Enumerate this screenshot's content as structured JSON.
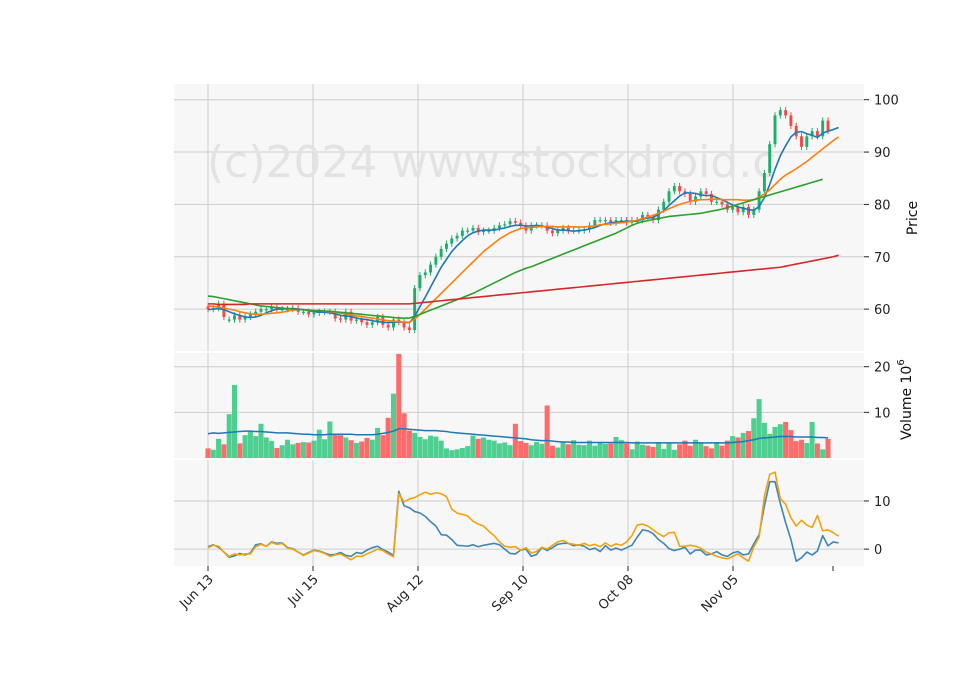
{
  "chart_data": {
    "type": "candlestick",
    "watermark": "(c)2024 www.stockdroid.c",
    "x_tick_labels": [
      "Jun 13",
      "Jul 15",
      "Aug 12",
      "Sep 10",
      "Oct 08",
      "Nov 05"
    ],
    "colors": {
      "up": "#1aaf6c",
      "down": "#f04a4a",
      "vol_up": "#4ccf8f",
      "vol_down": "#ff6b6b",
      "ma5": "#1f77b4",
      "ma10": "#ff7f0e",
      "ma20": "#2ca02c",
      "ma60": "#d62728",
      "vol_ma": "#1f77b4",
      "ind1": "#3f86b6",
      "ind2": "#f2a20f",
      "panel_bg": "#f7f7f7",
      "grid": "#cccccc"
    },
    "panels": [
      {
        "id": "price",
        "ylabel": "Price",
        "yticks": [
          60,
          70,
          80,
          90,
          100
        ],
        "ylim": [
          52,
          103
        ]
      },
      {
        "id": "volume",
        "ylabel": "Volume  10",
        "ylabel_exp": "6",
        "yticks": [
          10,
          20
        ],
        "ylim": [
          0,
          23
        ]
      },
      {
        "id": "indicator",
        "ylabel": "",
        "yticks": [
          0,
          10
        ],
        "ylim": [
          -3.5,
          18.5
        ]
      }
    ],
    "n_bars": 118,
    "candles": {
      "open": [
        60.5,
        60.0,
        60.2,
        61.0,
        58.0,
        58.0,
        58.8,
        58.0,
        58.5,
        59.0,
        59.5,
        60.0,
        60.0,
        60.3,
        60.0,
        60.0,
        60.0,
        60.2,
        59.5,
        59.5,
        59.0,
        59.3,
        59.5,
        59.5,
        59.5,
        58.2,
        58.0,
        59.5,
        57.8,
        58.0,
        57.5,
        57.0,
        57.5,
        58.5,
        57.0,
        56.5,
        58.0,
        57.5,
        56.5,
        56.0,
        64.0,
        66.5,
        67.0,
        68.5,
        70.0,
        71.5,
        72.5,
        73.5,
        74.0,
        75.0,
        75.0,
        75.5,
        74.7,
        75.0,
        75.0,
        75.5,
        76.0,
        76.2,
        76.8,
        76.5,
        76.0,
        75.0,
        76.0,
        76.0,
        76.0,
        75.0,
        74.5,
        75.0,
        75.5,
        75.0,
        75.0,
        75.0,
        75.2,
        76.0,
        77.0,
        77.0,
        77.0,
        76.5,
        77.0,
        77.0,
        76.5,
        77.0,
        77.0,
        78.0,
        77.5,
        77.0,
        79.0,
        80.5,
        82.5,
        83.5,
        82.5,
        82.0,
        80.5,
        81.5,
        82.5,
        82.0,
        80.5,
        80.5,
        80.0,
        79.0,
        79.5,
        78.5,
        79.5,
        78.0,
        79.0,
        82.5,
        86.0,
        91.5,
        97.0,
        98.0,
        97.0,
        95.0,
        93.0,
        91.0,
        93.0,
        94.0,
        93.0,
        96.0,
        94.0,
        94.5,
        95.0
      ],
      "close": [
        60.0,
        60.2,
        61.0,
        58.5,
        58.0,
        58.8,
        58.0,
        58.5,
        59.0,
        59.5,
        60.0,
        60.0,
        60.3,
        60.0,
        60.0,
        60.0,
        60.2,
        59.5,
        59.5,
        59.0,
        59.3,
        59.5,
        59.5,
        59.5,
        58.2,
        58.0,
        59.5,
        57.8,
        58.0,
        57.5,
        57.0,
        57.5,
        58.5,
        57.0,
        56.5,
        58.0,
        57.5,
        56.5,
        56.0,
        64.0,
        66.5,
        67.0,
        68.5,
        70.0,
        71.5,
        72.5,
        73.5,
        74.0,
        75.0,
        75.0,
        75.5,
        74.7,
        75.0,
        75.0,
        75.5,
        76.0,
        76.2,
        76.8,
        76.5,
        76.0,
        75.0,
        76.0,
        76.0,
        76.0,
        75.0,
        74.5,
        75.0,
        75.5,
        75.0,
        75.0,
        75.0,
        75.2,
        76.0,
        77.0,
        77.0,
        77.0,
        76.5,
        77.0,
        77.0,
        76.5,
        77.0,
        77.0,
        78.0,
        77.5,
        77.0,
        79.0,
        80.5,
        82.5,
        83.5,
        82.5,
        82.0,
        80.5,
        81.5,
        82.5,
        82.0,
        80.5,
        80.5,
        80.0,
        79.0,
        79.5,
        78.5,
        79.5,
        78.0,
        79.0,
        82.5,
        86.0,
        91.5,
        97.0,
        98.0,
        97.0,
        95.0,
        93.0,
        91.0,
        93.0,
        94.0,
        93.0,
        96.0,
        94.0,
        94.5,
        95.0,
        95.0
      ]
    },
    "volume_millions": [
      2.1,
      1.8,
      4.2,
      3.0,
      9.6,
      16.0,
      3.2,
      5.0,
      5.8,
      4.8,
      7.5,
      4.5,
      3.7,
      2.2,
      2.8,
      4.0,
      3.0,
      3.3,
      3.5,
      3.4,
      3.8,
      6.2,
      4.1,
      8.0,
      5.1,
      5.0,
      4.5,
      3.9,
      3.3,
      3.6,
      4.4,
      4.0,
      6.6,
      5.0,
      8.8,
      14.1,
      22.8,
      9.8,
      6.0,
      5.5,
      4.6,
      4.1,
      4.9,
      4.7,
      3.8,
      2.1,
      1.7,
      1.9,
      2.2,
      2.6,
      4.9,
      4.2,
      4.5,
      4.0,
      3.8,
      3.2,
      3.4,
      2.8,
      7.5,
      3.7,
      3.3,
      2.8,
      3.5,
      3.1,
      11.5,
      2.7,
      2.3,
      3.6,
      3.0,
      3.9,
      2.9,
      2.8,
      3.8,
      2.7,
      3.4,
      3.1,
      3.2,
      4.6,
      3.9,
      3.2,
      1.9,
      3.6,
      2.9,
      2.7,
      2.4,
      3.5,
      2.0,
      3.4,
      1.8,
      3.0,
      3.8,
      2.7,
      4.0,
      3.3,
      2.6,
      2.1,
      3.5,
      2.7,
      3.8,
      4.8,
      4.5,
      5.5,
      5.9,
      8.7,
      12.9,
      7.7,
      5.3,
      6.8,
      7.4,
      7.9,
      6.1,
      3.7,
      4.0,
      3.3,
      7.9,
      3.2,
      1.9,
      4.2
    ],
    "volume_ma": [
      5.3,
      5.5,
      5.4,
      5.5,
      5.6,
      5.7,
      5.8,
      5.9,
      5.9,
      5.8,
      5.8,
      5.7,
      5.6,
      5.5,
      5.5,
      5.5,
      5.4,
      5.3,
      5.2,
      5.2,
      5.1,
      5.1,
      5.1,
      5.2,
      5.2,
      5.2,
      5.2,
      5.2,
      5.1,
      5.1,
      5.1,
      5.1,
      5.2,
      5.4,
      5.6,
      5.9,
      6.4,
      6.4,
      6.3,
      6.2,
      6.1,
      6.0,
      6.0,
      6.0,
      5.9,
      5.8,
      5.6,
      5.5,
      5.4,
      5.3,
      5.2,
      5.1,
      5.0,
      4.9,
      4.8,
      4.7,
      4.6,
      4.5,
      4.4,
      4.3,
      4.2,
      4.0,
      3.9,
      3.8,
      3.8,
      3.7,
      3.6,
      3.5,
      3.5,
      3.4,
      3.4,
      3.4,
      3.4,
      3.4,
      3.4,
      3.4,
      3.4,
      3.4,
      3.4,
      3.4,
      3.3,
      3.3,
      3.3,
      3.3,
      3.3,
      3.3,
      3.3,
      3.3,
      3.3,
      3.3,
      3.3,
      3.3,
      3.3,
      3.3,
      3.3,
      3.3,
      3.3,
      3.3,
      3.3,
      3.4,
      3.5,
      3.6,
      3.8,
      4.0,
      4.3,
      4.4,
      4.5,
      4.6,
      4.7,
      4.7,
      4.7,
      4.6,
      4.6,
      4.6,
      4.6,
      4.5,
      4.5,
      4.4
    ],
    "ma_series": [
      {
        "key": "ma5",
        "color_key": "ma5",
        "values": [
          59.9,
          60.0,
          60.1,
          59.9,
          59.5,
          59.1,
          58.8,
          58.5,
          58.4,
          58.5,
          58.8,
          59.3,
          59.7,
          60.0,
          60.0,
          60.1,
          60.1,
          60.0,
          59.9,
          59.7,
          59.5,
          59.4,
          59.4,
          59.3,
          59.1,
          58.8,
          58.7,
          58.6,
          58.3,
          58.1,
          58.0,
          57.8,
          57.6,
          57.5,
          57.4,
          57.5,
          57.5,
          57.5,
          57.4,
          58.6,
          60.5,
          62.3,
          64.2,
          66.1,
          68.0,
          69.5,
          71.0,
          72.1,
          73.1,
          74.0,
          74.6,
          74.9,
          75.1,
          75.1,
          75.1,
          75.3,
          75.5,
          75.8,
          76.0,
          76.0,
          75.9,
          75.9,
          76.0,
          75.9,
          75.6,
          75.4,
          75.1,
          75.1,
          75.0,
          74.9,
          75.0,
          75.1,
          75.3,
          75.6,
          76.0,
          76.3,
          76.5,
          76.6,
          76.7,
          76.8,
          76.8,
          76.8,
          77.2,
          77.4,
          77.5,
          78.1,
          78.8,
          79.8,
          80.7,
          81.6,
          82.2,
          82.2,
          82.1,
          81.8,
          81.7,
          81.7,
          81.3,
          80.9,
          80.4,
          79.9,
          79.5,
          79.3,
          79.0,
          78.9,
          79.6,
          81.3,
          83.8,
          86.7,
          89.3,
          91.2,
          92.9,
          93.8,
          93.9,
          93.5,
          93.2,
          92.8,
          93.6,
          94.0,
          94.3,
          94.7
        ]
      },
      {
        "key": "ma10",
        "color_key": "ma10",
        "values": [
          60.6,
          60.5,
          60.4,
          60.2,
          60.0,
          59.8,
          59.5,
          59.3,
          59.1,
          59.0,
          59.0,
          59.1,
          59.2,
          59.3,
          59.4,
          59.6,
          59.8,
          59.9,
          59.9,
          59.8,
          59.7,
          59.7,
          59.6,
          59.5,
          59.4,
          59.2,
          59.1,
          58.9,
          58.7,
          58.6,
          58.4,
          58.3,
          58.1,
          57.9,
          57.8,
          57.7,
          57.6,
          57.5,
          57.5,
          58.1,
          59.0,
          60.0,
          61.0,
          62.0,
          63.0,
          64.0,
          65.0,
          66.0,
          67.0,
          68.0,
          69.0,
          70.0,
          71.0,
          71.8,
          72.6,
          73.4,
          74.0,
          74.6,
          75.0,
          75.4,
          75.5,
          75.6,
          75.7,
          75.8,
          75.8,
          75.8,
          75.7,
          75.7,
          75.7,
          75.7,
          75.7,
          75.7,
          75.8,
          75.9,
          76.1,
          76.2,
          76.3,
          76.4,
          76.5,
          76.6,
          76.8,
          77.0,
          77.3,
          77.6,
          77.9,
          78.3,
          78.7,
          79.2,
          79.6,
          80.0,
          80.3,
          80.6,
          80.8,
          80.9,
          80.9,
          81.0,
          81.0,
          80.9,
          80.9,
          80.9,
          80.9,
          80.8,
          80.8,
          80.9,
          81.4,
          82.0,
          82.8,
          83.8,
          84.8,
          85.6,
          86.2,
          86.8,
          87.5,
          88.2,
          89.0,
          89.8,
          90.6,
          91.4,
          92.2,
          92.9
        ]
      },
      {
        "key": "ma20",
        "color_key": "ma20",
        "values": [
          62.5,
          62.4,
          62.2,
          62.0,
          61.8,
          61.6,
          61.4,
          61.2,
          61.0,
          60.8,
          60.6,
          60.5,
          60.4,
          60.3,
          60.2,
          60.1,
          60.0,
          59.9,
          59.9,
          59.8,
          59.7,
          59.7,
          59.6,
          59.6,
          59.5,
          59.4,
          59.3,
          59.2,
          59.1,
          59.0,
          58.9,
          58.8,
          58.7,
          58.6,
          58.5,
          58.4,
          58.3,
          58.3,
          58.3,
          58.6,
          59.0,
          59.4,
          59.8,
          60.2,
          60.6,
          61.0,
          61.4,
          61.8,
          62.2,
          62.6,
          63.0,
          63.5,
          64.0,
          64.5,
          65.0,
          65.5,
          66.0,
          66.5,
          67.0,
          67.4,
          67.8,
          68.1,
          68.5,
          68.9,
          69.3,
          69.7,
          70.1,
          70.5,
          70.9,
          71.3,
          71.7,
          72.1,
          72.5,
          72.9,
          73.3,
          73.7,
          74.1,
          74.5,
          75.0,
          75.5,
          76.0,
          76.4,
          76.7,
          76.9,
          77.1,
          77.3,
          77.5,
          77.7,
          77.8,
          77.9,
          78.0,
          78.1,
          78.2,
          78.3,
          78.5,
          78.7,
          78.9,
          79.1,
          79.4,
          79.7,
          80.0,
          80.3,
          80.6,
          80.9,
          81.2,
          81.5,
          81.8,
          82.1,
          82.4,
          82.7,
          83.0,
          83.3,
          83.6,
          83.9,
          84.2,
          84.5,
          84.8
        ]
      },
      {
        "key": "ma60",
        "color_key": "ma60",
        "values": [
          61.0,
          61.0,
          60.9,
          60.9,
          60.9,
          60.9,
          60.9,
          60.9,
          61.0,
          61.0,
          61.0,
          61.0,
          61.0,
          61.0,
          61.0,
          61.0,
          61.0,
          61.0,
          61.0,
          61.0,
          61.0,
          61.0,
          61.0,
          61.0,
          61.0,
          61.0,
          61.0,
          61.0,
          61.0,
          61.0,
          61.0,
          61.0,
          61.0,
          61.0,
          61.0,
          61.0,
          61.0,
          61.0,
          61.0,
          61.1,
          61.2,
          61.3,
          61.4,
          61.5,
          61.6,
          61.7,
          61.8,
          61.9,
          62.0,
          62.1,
          62.2,
          62.3,
          62.4,
          62.5,
          62.6,
          62.7,
          62.8,
          62.9,
          63.0,
          63.1,
          63.2,
          63.3,
          63.4,
          63.5,
          63.6,
          63.7,
          63.8,
          63.9,
          64.0,
          64.1,
          64.2,
          64.3,
          64.4,
          64.5,
          64.6,
          64.7,
          64.8,
          64.9,
          65.0,
          65.1,
          65.2,
          65.3,
          65.4,
          65.5,
          65.6,
          65.7,
          65.8,
          65.9,
          66.0,
          66.1,
          66.2,
          66.3,
          66.4,
          66.5,
          66.6,
          66.7,
          66.8,
          66.9,
          67.0,
          67.1,
          67.2,
          67.3,
          67.4,
          67.5,
          67.6,
          67.7,
          67.8,
          67.9,
          68.0,
          68.2,
          68.4,
          68.6,
          68.8,
          69.0,
          69.2,
          69.4,
          69.6,
          69.8,
          70.0,
          70.3
        ]
      }
    ],
    "indicator_series": [
      {
        "key": "line1",
        "color_key": "ind1",
        "values": [
          0.5,
          0.9,
          0.4,
          -0.6,
          -1.7,
          -1.4,
          -0.9,
          -1.2,
          -0.8,
          0.9,
          1.1,
          0.6,
          1.5,
          1.2,
          1.3,
          0.3,
          0.1,
          -0.6,
          -1.2,
          -0.7,
          -0.2,
          -0.4,
          -0.8,
          -1.2,
          -1.1,
          -0.7,
          -1.3,
          -1.5,
          -0.7,
          -0.9,
          -0.2,
          0.3,
          0.6,
          -0.1,
          -0.6,
          -1.3,
          12.0,
          9.0,
          8.6,
          7.8,
          7.5,
          6.8,
          5.7,
          4.8,
          3.0,
          2.9,
          2.0,
          0.8,
          0.7,
          0.6,
          0.9,
          0.5,
          0.8,
          1.0,
          1.2,
          0.9,
          0.0,
          -0.9,
          -1.0,
          -0.2,
          0.0,
          -1.5,
          -1.1,
          0.3,
          -0.3,
          0.3,
          1.0,
          1.2,
          1.2,
          0.7,
          0.9,
          0.6,
          -0.1,
          0.2,
          -0.5,
          0.7,
          -0.2,
          0.2,
          -0.2,
          0.3,
          0.8,
          2.5,
          4.0,
          3.8,
          3.2,
          2.0,
          1.2,
          0.1,
          -0.3,
          0.0,
          0.4,
          -1.0,
          -0.2,
          -0.2,
          -1.2,
          -1.0,
          -0.5,
          -1.2,
          -1.5,
          -0.8,
          -0.5,
          -1.2,
          -1.0,
          1.1,
          3.0,
          9.0,
          14.0,
          14.0,
          9.5,
          5.5,
          2.0,
          -2.5,
          -1.8,
          -0.6,
          -1.2,
          -0.4,
          2.8,
          0.7,
          1.5,
          1.3
        ]
      },
      {
        "key": "line2",
        "color_key": "ind2",
        "values": [
          0.3,
          0.8,
          0.6,
          -0.6,
          -1.5,
          -1.0,
          -1.2,
          -1.0,
          -1.0,
          0.5,
          1.0,
          0.6,
          1.4,
          1.0,
          1.2,
          0.2,
          0.0,
          -0.6,
          -1.3,
          -0.8,
          -0.3,
          -0.5,
          -0.9,
          -1.5,
          -1.2,
          -1.0,
          -1.6,
          -2.2,
          -1.5,
          -1.5,
          -1.0,
          -0.5,
          0.0,
          -0.3,
          -1.0,
          -1.6,
          11.5,
          9.8,
          10.4,
          10.7,
          11.3,
          11.8,
          11.4,
          11.7,
          11.5,
          10.9,
          8.3,
          7.5,
          7.2,
          6.9,
          5.8,
          5.2,
          4.8,
          3.7,
          2.8,
          1.5,
          0.6,
          0.4,
          0.5,
          -0.2,
          0.3,
          -0.8,
          -0.5,
          0.4,
          0.0,
          0.8,
          1.5,
          1.8,
          1.2,
          1.0,
          0.8,
          1.2,
          0.7,
          1.0,
          0.5,
          1.3,
          0.6,
          1.1,
          0.8,
          1.5,
          2.8,
          5.0,
          5.2,
          4.8,
          4.0,
          3.2,
          2.6,
          3.4,
          3.5,
          0.6,
          0.6,
          0.8,
          0.6,
          0.2,
          -0.6,
          -1.0,
          -1.5,
          -1.8,
          -2.0,
          -1.5,
          -1.0,
          -1.8,
          -2.5,
          0.5,
          2.5,
          11.0,
          15.5,
          16.0,
          10.5,
          9.3,
          6.5,
          4.8,
          6.0,
          5.0,
          4.5,
          7.0,
          3.8,
          4.0,
          3.4,
          2.7
        ]
      }
    ]
  }
}
